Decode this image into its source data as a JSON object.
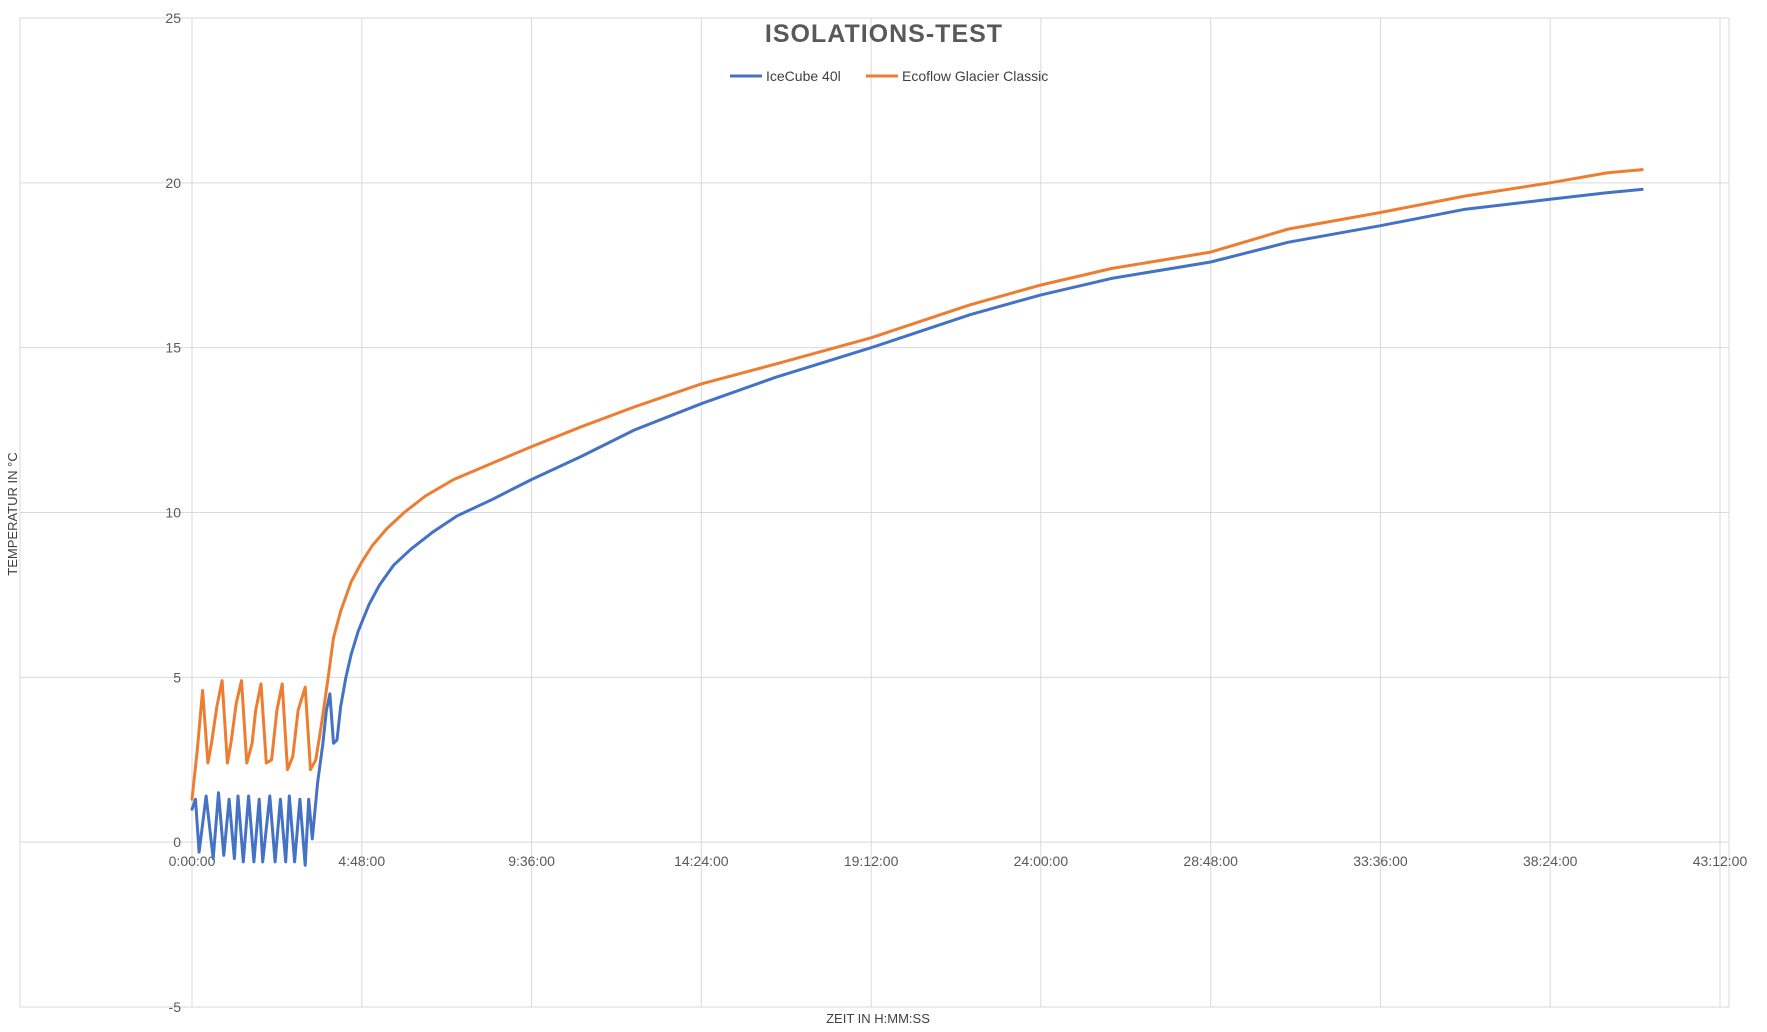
{
  "chart_data": {
    "type": "line",
    "title": "ISOLATIONS-TEST",
    "xlabel": "ZEIT IN H:MM:SS",
    "ylabel": "TEMPERATUR IN °C",
    "x_unit": "hours",
    "xlim": [
      0,
      43.2
    ],
    "ylim": [
      -5,
      25
    ],
    "x_ticks": [
      0,
      4.8,
      9.6,
      14.4,
      19.2,
      24.0,
      28.8,
      33.6,
      38.4,
      43.2
    ],
    "x_tick_labels": [
      "0:00:00",
      "4:48:00",
      "9:36:00",
      "14:24:00",
      "19:12:00",
      "24:00:00",
      "28:48:00",
      "33:36:00",
      "38:24:00",
      "43:12:00"
    ],
    "y_ticks": [
      -5,
      0,
      5,
      10,
      15,
      20,
      25
    ],
    "y_tick_labels": [
      "-5",
      "0",
      "5",
      "10",
      "15",
      "20",
      "25"
    ],
    "grid": true,
    "legend_position": "top-center",
    "series": [
      {
        "name": "IceCube 40l",
        "color": "#4472C4",
        "x": [
          0.0,
          0.1,
          0.2,
          0.4,
          0.6,
          0.75,
          0.9,
          1.05,
          1.2,
          1.3,
          1.45,
          1.6,
          1.75,
          1.9,
          2.0,
          2.2,
          2.35,
          2.5,
          2.65,
          2.75,
          2.9,
          3.05,
          3.2,
          3.3,
          3.4,
          3.55,
          3.7,
          3.8,
          3.9,
          4.0,
          4.1,
          4.2,
          4.35,
          4.5,
          4.7,
          5.0,
          5.3,
          5.7,
          6.2,
          6.8,
          7.5,
          8.5,
          9.6,
          11.0,
          12.5,
          14.4,
          16.5,
          19.2,
          22.0,
          24.0,
          26.0,
          28.8,
          31.0,
          33.6,
          36.0,
          38.4,
          40.0,
          41.0
        ],
        "y": [
          1.0,
          1.3,
          -0.3,
          1.4,
          -0.5,
          1.5,
          -0.4,
          1.3,
          -0.5,
          1.4,
          -0.6,
          1.4,
          -0.6,
          1.3,
          -0.6,
          1.4,
          -0.6,
          1.3,
          -0.6,
          1.4,
          -0.6,
          1.3,
          -0.7,
          1.3,
          0.1,
          1.8,
          3.0,
          4.0,
          4.5,
          3.0,
          3.1,
          4.1,
          5.0,
          5.7,
          6.4,
          7.2,
          7.8,
          8.4,
          8.9,
          9.4,
          9.9,
          10.4,
          11.0,
          11.7,
          12.5,
          13.3,
          14.1,
          15.0,
          16.0,
          16.6,
          17.1,
          17.6,
          18.2,
          18.7,
          19.2,
          19.5,
          19.7,
          19.8
        ]
      },
      {
        "name": "Ecoflow Glacier Classic",
        "color": "#ED7D31",
        "x": [
          0.0,
          0.15,
          0.3,
          0.45,
          0.55,
          0.7,
          0.85,
          1.0,
          1.1,
          1.25,
          1.4,
          1.55,
          1.7,
          1.8,
          1.95,
          2.1,
          2.25,
          2.4,
          2.55,
          2.7,
          2.85,
          3.0,
          3.2,
          3.35,
          3.5,
          3.65,
          3.85,
          4.0,
          4.2,
          4.5,
          4.8,
          5.1,
          5.5,
          6.0,
          6.6,
          7.4,
          8.5,
          9.6,
          11.0,
          12.5,
          14.4,
          16.5,
          19.2,
          22.0,
          24.0,
          26.0,
          28.8,
          31.0,
          33.6,
          36.0,
          38.4,
          40.0,
          41.0
        ],
        "y": [
          1.3,
          2.8,
          4.6,
          2.4,
          3.0,
          4.1,
          4.9,
          2.4,
          3.0,
          4.2,
          4.9,
          2.4,
          3.0,
          4.0,
          4.8,
          2.4,
          2.5,
          4.0,
          4.8,
          2.2,
          2.6,
          4.0,
          4.7,
          2.2,
          2.5,
          3.5,
          5.0,
          6.2,
          7.0,
          7.9,
          8.5,
          9.0,
          9.5,
          10.0,
          10.5,
          11.0,
          11.5,
          12.0,
          12.6,
          13.2,
          13.9,
          14.5,
          15.3,
          16.3,
          16.9,
          17.4,
          17.9,
          18.6,
          19.1,
          19.6,
          20.0,
          20.3,
          20.4
        ]
      }
    ]
  }
}
